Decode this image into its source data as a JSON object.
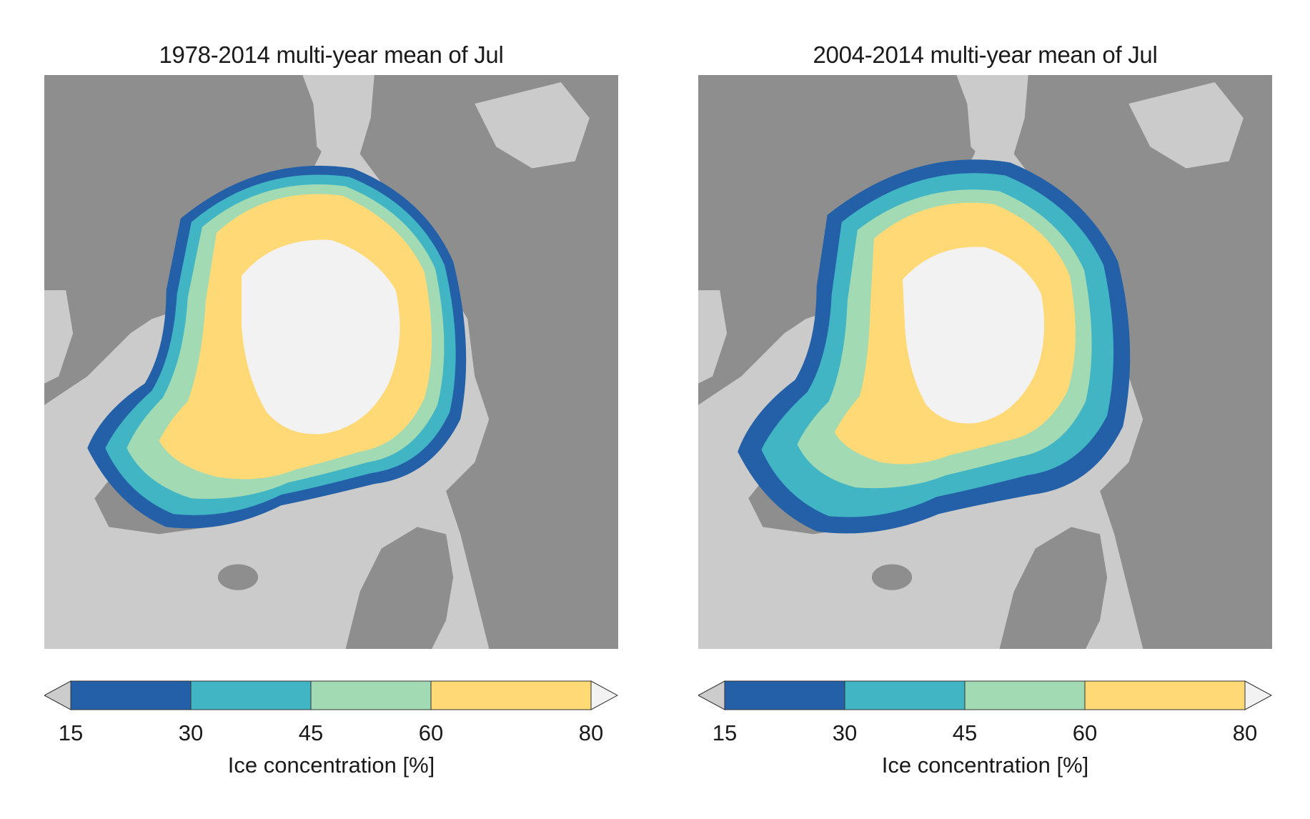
{
  "panels": [
    {
      "title": "1978-2014 multi-year mean of Jul",
      "legend_label": "Ice concentration [%]",
      "ticks": [
        "15",
        "30",
        "45",
        "60",
        "80"
      ],
      "variant": "long"
    },
    {
      "title": "2004-2014 multi-year mean of Jul",
      "legend_label": "Ice concentration [%]",
      "ticks": [
        "15",
        "30",
        "45",
        "60",
        "80"
      ],
      "variant": "recent"
    }
  ],
  "legend": {
    "bins": [
      {
        "from": 15,
        "to": 30,
        "color": "#2360a8"
      },
      {
        "from": 30,
        "to": 45,
        "color": "#41b5c4"
      },
      {
        "from": 45,
        "to": 60,
        "color": "#a2dab4"
      },
      {
        "from": 60,
        "to": 80,
        "color": "#fed976"
      }
    ],
    "under_color": "#cccccc",
    "over_color": "#f2f2f2"
  },
  "colors": {
    "ocean": "#cbcbcb",
    "land": "#8e8e8e",
    "ice_15_30": "#2360a8",
    "ice_30_45": "#41b5c4",
    "ice_45_60": "#a2dab4",
    "ice_60_80": "#fed976",
    "ice_80_100": "#f2f2f2"
  }
}
